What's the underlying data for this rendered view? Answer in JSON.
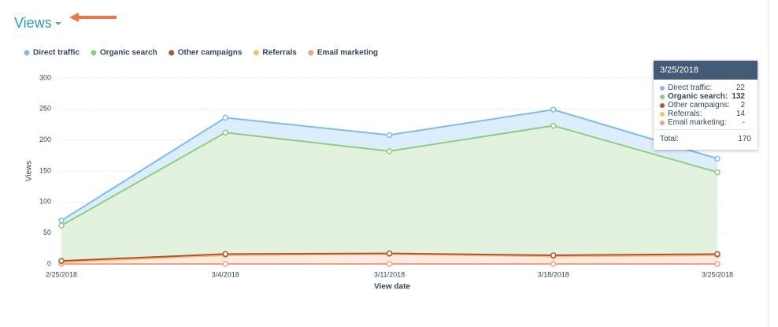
{
  "chart_data": {
    "type": "stacked-area",
    "title": "Views",
    "x_label": "View date",
    "y_label": "Views",
    "categories": [
      "2/25/2018",
      "3/4/2018",
      "3/11/2018",
      "3/18/2018",
      "3/25/2018"
    ],
    "series": [
      {
        "name": "Direct traffic",
        "color": "#7fbcee",
        "fill": "#d6eafc",
        "values": [
          8,
          24,
          26,
          26,
          22
        ]
      },
      {
        "name": "Organic search",
        "color": "#8fce7e",
        "fill": "#ddf0d8",
        "values": [
          57,
          196,
          165,
          209,
          132
        ]
      },
      {
        "name": "Other campaigns",
        "color": "#b0533a",
        "fill": "#f6e3db",
        "values": [
          2,
          2,
          1,
          2,
          2
        ]
      },
      {
        "name": "Referrals",
        "color": "#f5c26b",
        "fill": "#fbe6da",
        "values": [
          3,
          14,
          16,
          12,
          14
        ]
      },
      {
        "name": "Email marketing",
        "color": "#f2a18a",
        "fill": "#fbe0d8",
        "values": [
          0,
          0,
          0,
          0,
          0
        ]
      }
    ],
    "ylim": [
      0,
      300
    ],
    "yticks": [
      0,
      50,
      100,
      150,
      200,
      250,
      300
    ],
    "grid": true,
    "tooltip": {
      "date": "3/25/2018",
      "rows": [
        {
          "label": "Direct traffic:",
          "value": "22"
        },
        {
          "label": "Organic search:",
          "value": "132"
        },
        {
          "label": "Other campaigns:",
          "value": "2"
        },
        {
          "label": "Referrals:",
          "value": "14"
        },
        {
          "label": "Email marketing:",
          "value": "-"
        }
      ],
      "total_label": "Total:",
      "total": "170"
    }
  }
}
